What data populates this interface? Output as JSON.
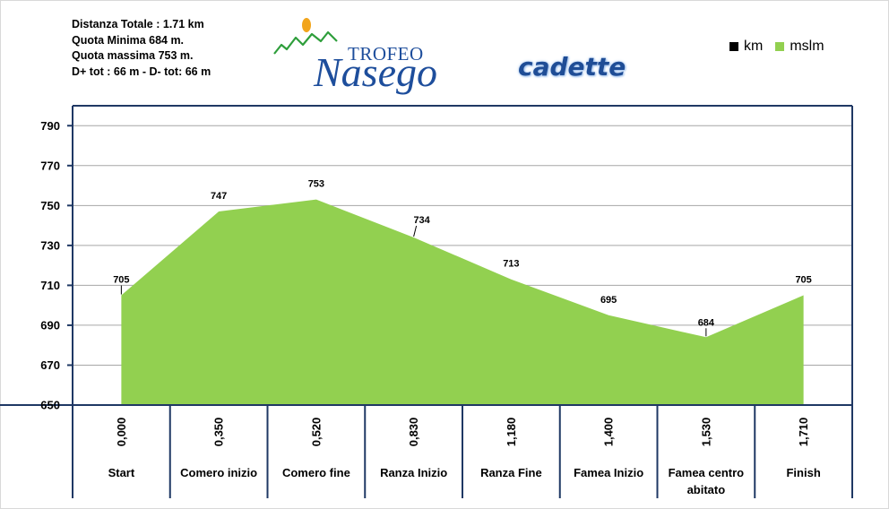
{
  "stats": {
    "line1": "Distanza Totale : 1.71 km",
    "line2": "Quota Minima 684 m.",
    "line3": "Quota massima 753 m.",
    "line4": "D+ tot : 66 m - D- tot: 66 m"
  },
  "logo": {
    "word": "TROFEO",
    "name": "Nasego"
  },
  "category": "cadette",
  "legend": [
    {
      "label": "km",
      "color": "#000000",
      "icon": "black-square-icon"
    },
    {
      "label": "mslm",
      "color": "#92d050",
      "icon": "green-square-icon"
    }
  ],
  "chart_data": {
    "type": "area",
    "categories": [
      "Start",
      "Comero inizio",
      "Comero fine",
      "Ranza Inizio",
      "Ranza Fine",
      "Famea Inizio",
      "Famea centro abitato",
      "Finish"
    ],
    "km": [
      "0,000",
      "0,350",
      "0,520",
      "0,830",
      "1,180",
      "1,400",
      "1,530",
      "1,710"
    ],
    "series": [
      {
        "name": "mslm",
        "values": [
          705,
          747,
          753,
          734,
          713,
          695,
          684,
          705
        ],
        "color": "#92d050"
      }
    ],
    "yticks": [
      650,
      670,
      690,
      710,
      730,
      750,
      770,
      790
    ],
    "ylim": [
      650,
      800
    ],
    "grid": true
  }
}
